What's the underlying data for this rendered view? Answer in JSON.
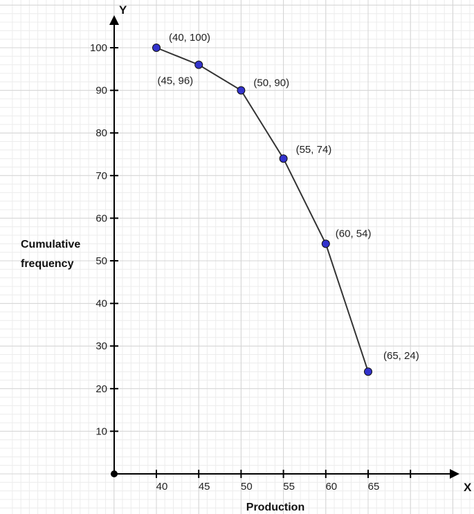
{
  "chart_data": {
    "type": "line",
    "title": "",
    "xlabel": "Production",
    "ylabel_lines": [
      "Cumulative",
      "frequency"
    ],
    "x_axis_letter": "X",
    "y_axis_letter": "Y",
    "x_ticks": [
      40,
      45,
      50,
      55,
      60,
      65
    ],
    "y_ticks": [
      10,
      20,
      30,
      40,
      50,
      60,
      70,
      80,
      90,
      100
    ],
    "xlim": [
      35,
      75
    ],
    "ylim": [
      0,
      105
    ],
    "grid": true,
    "colors": {
      "marker": "#3333cc",
      "line": "#333333",
      "grid": "#e6e6e6"
    },
    "series": [
      {
        "x": [
          40,
          45,
          50,
          55,
          60,
          65
        ],
        "y": [
          100,
          96,
          90,
          74,
          54,
          24
        ],
        "labels": [
          "(40, 100)",
          "(45, 96)",
          "(50, 90)",
          "(55, 74)",
          "(60, 54)",
          "(65, 24)"
        ]
      }
    ]
  }
}
